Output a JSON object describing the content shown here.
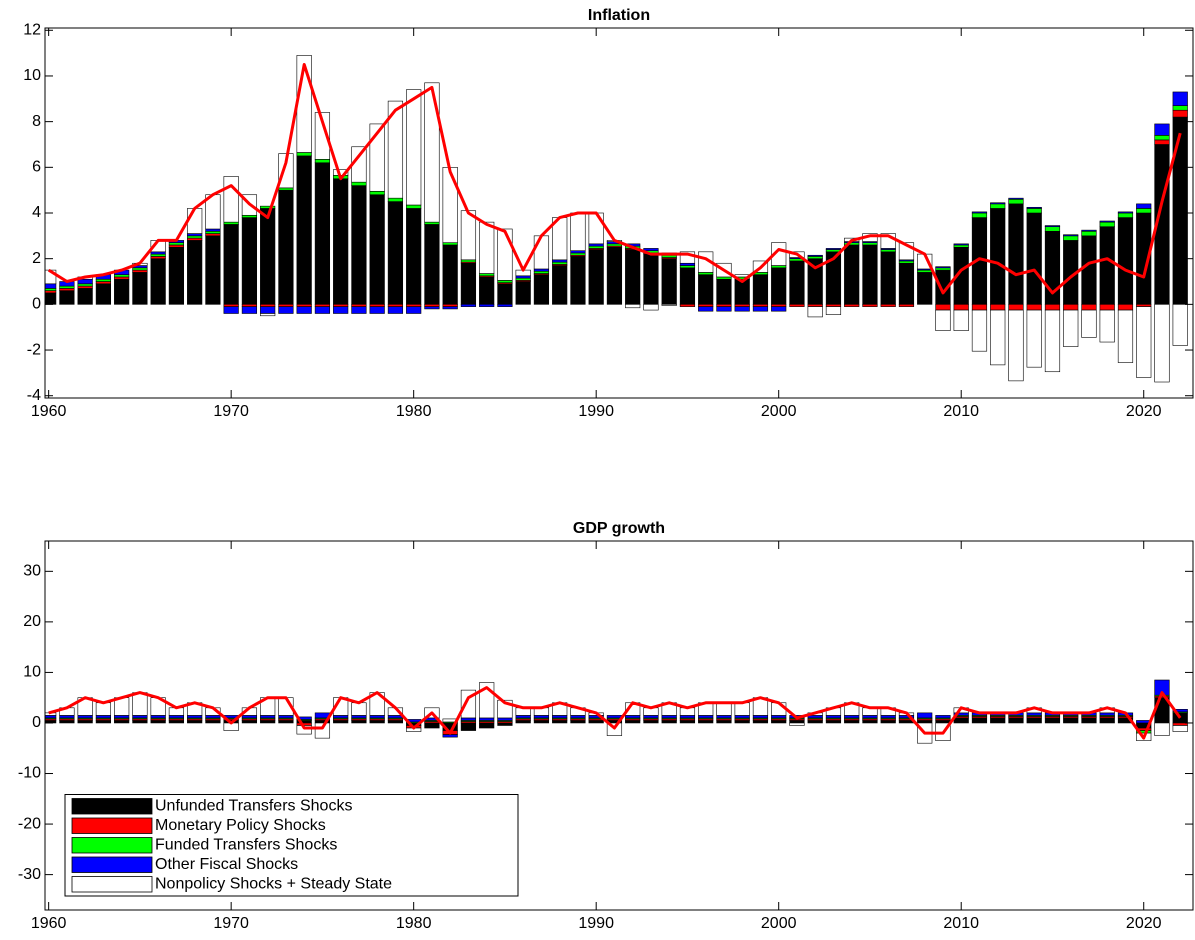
{
  "chart_data": [
    {
      "type": "bar",
      "title": "Inflation",
      "x": [
        1960,
        1961,
        1962,
        1963,
        1964,
        1965,
        1966,
        1967,
        1968,
        1969,
        1970,
        1971,
        1972,
        1973,
        1974,
        1975,
        1976,
        1977,
        1978,
        1979,
        1980,
        1981,
        1982,
        1983,
        1984,
        1985,
        1986,
        1987,
        1988,
        1989,
        1990,
        1991,
        1992,
        1993,
        1994,
        1995,
        1996,
        1997,
        1998,
        1999,
        2000,
        2001,
        2002,
        2003,
        2004,
        2005,
        2006,
        2007,
        2008,
        2009,
        2010,
        2011,
        2012,
        2013,
        2014,
        2015,
        2016,
        2017,
        2018,
        2019,
        2020,
        2021,
        2022
      ],
      "series": [
        {
          "color": "#000000",
          "values": [
            0.5,
            0.6,
            0.7,
            0.9,
            1.1,
            1.4,
            2.0,
            2.5,
            2.8,
            3.0,
            3.5,
            3.8,
            4.2,
            5.0,
            6.5,
            6.2,
            5.5,
            5.2,
            4.8,
            4.5,
            4.2,
            3.5,
            2.6,
            1.8,
            1.2,
            0.9,
            1.0,
            1.3,
            1.7,
            2.1,
            2.4,
            2.5,
            2.4,
            2.2,
            2.0,
            1.6,
            1.3,
            1.1,
            1.1,
            1.3,
            1.6,
            1.9,
            2.0,
            2.3,
            2.6,
            2.6,
            2.3,
            1.8,
            1.4,
            1.5,
            2.5,
            3.8,
            4.2,
            4.4,
            4.0,
            3.2,
            2.8,
            3.0,
            3.4,
            3.8,
            4.0,
            7.0,
            8.2
          ]
        },
        {
          "color": "#ff0000",
          "values": [
            0.1,
            0.1,
            0.1,
            0.1,
            0.1,
            0.1,
            0.1,
            0.1,
            0.1,
            0.1,
            -0.1,
            -0.1,
            -0.1,
            -0.1,
            -0.1,
            -0.1,
            -0.1,
            -0.1,
            -0.1,
            -0.1,
            -0.1,
            -0.1,
            -0.1,
            0.05,
            0.05,
            0.05,
            0.05,
            0.05,
            0.05,
            0.05,
            0.05,
            0.05,
            0.05,
            0.05,
            0.05,
            -0.1,
            -0.1,
            -0.1,
            -0.1,
            -0.1,
            -0.1,
            -0.1,
            -0.1,
            -0.1,
            -0.1,
            -0.1,
            -0.1,
            -0.1,
            0,
            -0.25,
            -0.25,
            -0.25,
            -0.25,
            -0.25,
            -0.25,
            -0.25,
            -0.25,
            -0.25,
            -0.25,
            -0.25,
            -0.1,
            0.2,
            0.3
          ]
        },
        {
          "color": "#00ff00",
          "values": [
            0.1,
            0.1,
            0.1,
            0.1,
            0.1,
            0.1,
            0.1,
            0.1,
            0.1,
            0.1,
            0.1,
            0.1,
            0.1,
            0.1,
            0.15,
            0.15,
            0.15,
            0.15,
            0.15,
            0.15,
            0.15,
            0.1,
            0.1,
            0.1,
            0.1,
            0.1,
            0.1,
            0.1,
            0.1,
            0.1,
            0.1,
            0.1,
            0.1,
            0.1,
            0.1,
            0.1,
            0.1,
            0.1,
            0.1,
            0.1,
            0.1,
            0.1,
            0.1,
            0.1,
            0.1,
            0.1,
            0.1,
            0.1,
            0.1,
            0.1,
            0.1,
            0.2,
            0.2,
            0.2,
            0.2,
            0.2,
            0.2,
            0.2,
            0.2,
            0.2,
            0.2,
            0.2,
            0.2
          ]
        },
        {
          "color": "#0000ff",
          "values": [
            0.2,
            0.2,
            0.2,
            0.2,
            0.2,
            0.1,
            0.1,
            0.1,
            0.1,
            0.1,
            -0.3,
            -0.3,
            -0.3,
            -0.3,
            -0.3,
            -0.3,
            -0.3,
            -0.3,
            -0.3,
            -0.3,
            -0.3,
            -0.1,
            -0.1,
            -0.1,
            -0.1,
            -0.1,
            0.1,
            0.1,
            0.1,
            0.1,
            0.1,
            0.1,
            0.1,
            0.1,
            0.1,
            0.1,
            -0.2,
            -0.2,
            -0.2,
            -0.2,
            -0.2,
            0.05,
            0.05,
            0.05,
            0.05,
            0.05,
            0.05,
            0.05,
            0.05,
            0.05,
            0.05,
            0.05,
            0.05,
            0.05,
            0.05,
            0.05,
            0.05,
            0.05,
            0.05,
            0.05,
            0.2,
            0.5,
            0.6
          ]
        },
        {
          "color": "#ffffff",
          "values": [
            0.6,
            0.0,
            0.1,
            0.0,
            0.0,
            0.1,
            0.5,
            0.0,
            1.1,
            1.5,
            2.0,
            0.9,
            -0.1,
            1.5,
            4.25,
            2.05,
            0.25,
            1.55,
            2.95,
            4.25,
            5.05,
            6.1,
            3.3,
            2.15,
            2.25,
            2.25,
            0.25,
            1.45,
            1.85,
            1.65,
            1.35,
            0.05,
            -0.15,
            -0.25,
            -0.05,
            0.5,
            0.9,
            0.6,
            0.1,
            0.5,
            1.0,
            0.25,
            -0.45,
            -0.35,
            0.15,
            0.35,
            0.65,
            0.75,
            0.65,
            -0.9,
            -0.9,
            -1.8,
            -2.4,
            -3.1,
            -2.5,
            -2.7,
            -1.6,
            -1.2,
            -1.4,
            -2.3,
            -3.1,
            -3.4,
            -1.8
          ]
        }
      ],
      "line": {
        "color": "#ff0000",
        "values": [
          1.5,
          1.0,
          1.2,
          1.3,
          1.5,
          1.8,
          2.8,
          2.8,
          4.2,
          4.8,
          5.2,
          4.4,
          3.8,
          6.2,
          10.5,
          8.0,
          5.5,
          6.5,
          7.5,
          8.5,
          9.0,
          9.5,
          5.8,
          4.0,
          3.5,
          3.2,
          1.5,
          3.0,
          3.8,
          4.0,
          4.0,
          2.8,
          2.5,
          2.2,
          2.2,
          2.2,
          2.0,
          1.5,
          1.0,
          1.6,
          2.4,
          2.2,
          1.6,
          2.0,
          2.8,
          3.0,
          3.0,
          2.6,
          2.2,
          0.5,
          1.5,
          2.0,
          1.8,
          1.3,
          1.5,
          0.5,
          1.2,
          1.8,
          2.0,
          1.5,
          1.2,
          4.5,
          7.5
        ]
      },
      "xlim": [
        1959.8,
        2022.7
      ],
      "xticks": [
        1960,
        1970,
        1980,
        1990,
        2000,
        2010,
        2020
      ],
      "ylim": [
        -4.1,
        12.1
      ],
      "yticks": [
        -4,
        -2,
        0,
        2,
        4,
        6,
        8,
        10,
        12
      ]
    },
    {
      "type": "bar",
      "title": "GDP growth",
      "x": [
        1960,
        1961,
        1962,
        1963,
        1964,
        1965,
        1966,
        1967,
        1968,
        1969,
        1970,
        1971,
        1972,
        1973,
        1974,
        1975,
        1976,
        1977,
        1978,
        1979,
        1980,
        1981,
        1982,
        1983,
        1984,
        1985,
        1986,
        1987,
        1988,
        1989,
        1990,
        1991,
        1992,
        1993,
        1994,
        1995,
        1996,
        1997,
        1998,
        1999,
        2000,
        2001,
        2002,
        2003,
        2004,
        2005,
        2006,
        2007,
        2008,
        2009,
        2010,
        2011,
        2012,
        2013,
        2014,
        2015,
        2016,
        2017,
        2018,
        2019,
        2020,
        2021,
        2022
      ],
      "series": [
        {
          "name": "Unfunded Transfers Shocks",
          "color": "#000000",
          "values": [
            0.5,
            0.5,
            0.5,
            0.5,
            0.5,
            0.5,
            0.5,
            0.5,
            0.5,
            0.5,
            0.5,
            0.5,
            0.5,
            0.5,
            0.5,
            0.5,
            0.5,
            0.5,
            0.5,
            0.5,
            -0.5,
            -1,
            -1.5,
            -1.5,
            -1,
            -0.5,
            0.5,
            0.5,
            0.5,
            0.5,
            0.5,
            0.5,
            0.5,
            0.5,
            0.5,
            0.5,
            0.5,
            0.5,
            0.5,
            0.5,
            0.5,
            0.5,
            0.5,
            0.5,
            0.5,
            0.5,
            0.5,
            0.5,
            0.5,
            0.5,
            1,
            1,
            1,
            1,
            1,
            1,
            1,
            1,
            1,
            1,
            -1,
            5,
            2
          ]
        },
        {
          "name": "Monetary Policy Shocks",
          "color": "#ff0000",
          "values": [
            0.3,
            0.3,
            0.3,
            0.3,
            0.3,
            0.3,
            0.3,
            0.3,
            0.3,
            0.3,
            0.3,
            0.3,
            0.3,
            0.3,
            -0.5,
            0.3,
            0.3,
            0.3,
            0.3,
            0.3,
            -0.5,
            0.3,
            -0.8,
            0.3,
            0.3,
            0.3,
            0.3,
            0.3,
            0.3,
            0.3,
            0.3,
            0.3,
            0.3,
            0.3,
            0.3,
            0.3,
            0.3,
            0.3,
            0.3,
            0.3,
            0.3,
            0.3,
            0.3,
            0.3,
            0.3,
            0.3,
            0.3,
            0.3,
            0.3,
            0.3,
            0.3,
            0.3,
            0.3,
            0.3,
            0.3,
            0.3,
            0.3,
            0.3,
            0.3,
            0.3,
            -0.5,
            0.3,
            -0.5
          ]
        },
        {
          "name": "Funded Transfers Shocks",
          "color": "#00ff00",
          "values": [
            0.2,
            0.2,
            0.2,
            0.2,
            0.2,
            0.2,
            0.2,
            0.2,
            0.2,
            0.2,
            0.2,
            0.2,
            0.2,
            0.2,
            0.2,
            0.2,
            0.2,
            0.2,
            0.2,
            0.2,
            0.2,
            0.2,
            0.2,
            0.2,
            0.2,
            0.2,
            0.2,
            0.2,
            0.2,
            0.2,
            0.2,
            0.2,
            0.2,
            0.2,
            0.2,
            0.2,
            0.2,
            0.2,
            0.2,
            0.2,
            0.2,
            0.2,
            0.2,
            0.2,
            0.2,
            0.2,
            0.2,
            0.2,
            0.2,
            0.2,
            0.2,
            0.2,
            0.2,
            0.2,
            0.2,
            0.2,
            0.2,
            0.2,
            0.2,
            0.2,
            -0.5,
            0.2,
            0.2
          ]
        },
        {
          "name": "Other Fiscal Shocks",
          "color": "#0000ff",
          "values": [
            0.5,
            0.5,
            0.5,
            0.5,
            0.5,
            0.5,
            0.5,
            0.5,
            0.5,
            0.5,
            0.5,
            0.5,
            0.5,
            0.5,
            0.5,
            1.0,
            0.5,
            0.5,
            0.5,
            0.5,
            0.5,
            0.5,
            -0.5,
            0.5,
            0.5,
            0.5,
            0.5,
            0.5,
            0.5,
            0.5,
            0.5,
            0.5,
            0.5,
            0.5,
            0.5,
            0.5,
            0.5,
            0.5,
            0.5,
            0.5,
            0.5,
            0.5,
            0.5,
            0.5,
            0.5,
            0.5,
            0.5,
            0.5,
            1.0,
            0.5,
            0.5,
            0.5,
            0.5,
            0.5,
            0.5,
            0.5,
            0.5,
            0.5,
            0.5,
            0.5,
            0.5,
            3,
            0.5
          ]
        },
        {
          "name": "Nonpolicy Shocks + Steady State",
          "color": "#ffffff",
          "values": [
            0.5,
            1.5,
            3.5,
            2.5,
            3.5,
            4.5,
            3.5,
            1.5,
            2.5,
            1.5,
            -1.5,
            1.5,
            3.5,
            3.5,
            -1.7,
            -3,
            3.5,
            2.5,
            4.5,
            1.5,
            -0.7,
            2,
            0.6,
            5.5,
            7,
            3.5,
            1.5,
            1.5,
            2.5,
            1.5,
            0.5,
            -2.5,
            2.5,
            1.5,
            2.5,
            1.5,
            2.5,
            2.5,
            2.5,
            3.5,
            2.5,
            -0.5,
            0.5,
            1.5,
            2.5,
            1.5,
            1.5,
            0.5,
            -4,
            -3.5,
            1,
            0,
            0,
            0,
            1,
            0,
            0,
            0,
            1,
            0,
            -1.5,
            -2.5,
            -1.2
          ]
        }
      ],
      "line": {
        "color": "#ff0000",
        "values": [
          2,
          3,
          5,
          4,
          5,
          6,
          5,
          3,
          4,
          3,
          0,
          3,
          5,
          5,
          -1,
          -1,
          5,
          4,
          6,
          3,
          -1,
          2,
          -2,
          5,
          7,
          4,
          3,
          3,
          4,
          3,
          2,
          -1,
          4,
          3,
          4,
          3,
          4,
          4,
          4,
          5,
          4,
          1,
          2,
          3,
          4,
          3,
          3,
          2,
          -2,
          -2,
          3,
          2,
          2,
          2,
          3,
          2,
          2,
          2,
          3,
          2,
          -3,
          6,
          1
        ]
      },
      "xlim": [
        1959.8,
        2022.7
      ],
      "xticks": [
        1960,
        1970,
        1980,
        1990,
        2000,
        2010,
        2020
      ],
      "ylim": [
        -37,
        36
      ],
      "yticks": [
        -30,
        -20,
        -10,
        0,
        10,
        20,
        30
      ],
      "legend": "lower left"
    }
  ]
}
